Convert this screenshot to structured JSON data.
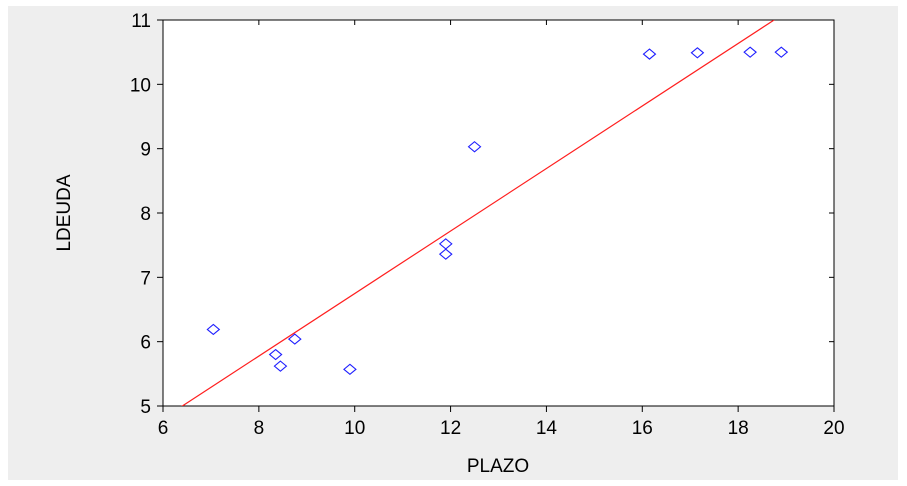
{
  "chart_data": {
    "type": "scatter",
    "title": "",
    "xlabel": "PLAZO",
    "ylabel": "LDEUDA",
    "xlim": [
      6,
      20
    ],
    "ylim": [
      5,
      11
    ],
    "xticks": [
      6,
      8,
      10,
      12,
      14,
      16,
      18,
      20
    ],
    "yticks": [
      5,
      6,
      7,
      8,
      9,
      10,
      11
    ],
    "grid": false,
    "legend": "none",
    "series": [
      {
        "marker": "diamond-open",
        "color": "#1f1fff",
        "points": [
          {
            "x": 7.05,
            "y": 6.19
          },
          {
            "x": 8.35,
            "y": 5.8
          },
          {
            "x": 8.45,
            "y": 5.62
          },
          {
            "x": 8.75,
            "y": 6.04
          },
          {
            "x": 9.9,
            "y": 5.57
          },
          {
            "x": 11.9,
            "y": 7.52
          },
          {
            "x": 11.9,
            "y": 7.36
          },
          {
            "x": 12.5,
            "y": 9.03
          },
          {
            "x": 16.15,
            "y": 10.47
          },
          {
            "x": 17.15,
            "y": 10.49
          },
          {
            "x": 18.25,
            "y": 10.5
          },
          {
            "x": 18.9,
            "y": 10.5
          }
        ]
      }
    ],
    "fit_line": {
      "color": "#ff1f1f",
      "points": [
        {
          "x": 6.3,
          "y": 4.95
        },
        {
          "x": 18.75,
          "y": 11.0
        }
      ]
    }
  }
}
